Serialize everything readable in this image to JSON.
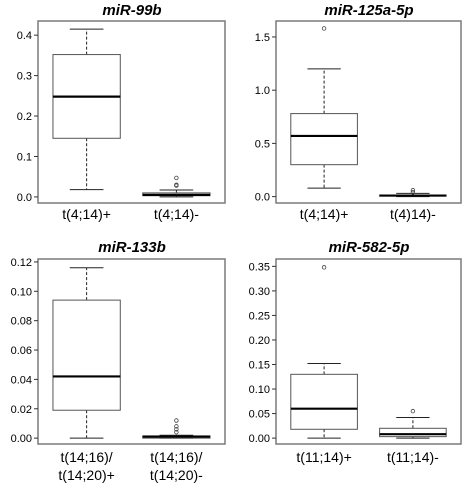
{
  "chart_data": [
    {
      "type": "box",
      "title": "miR-99b",
      "ylim": [
        -0.015,
        0.435
      ],
      "yticks": [
        0.0,
        0.1,
        0.2,
        0.3,
        0.4
      ],
      "tick_labels": [
        "0.0",
        "0.1",
        "0.2",
        "0.3",
        "0.4"
      ],
      "categories": [
        [
          "t(4;14)+"
        ],
        [
          "t(4;14)-"
        ]
      ],
      "boxes": [
        {
          "min": 0.018,
          "q1": 0.145,
          "median": 0.248,
          "q3": 0.352,
          "max": 0.415,
          "outliers": []
        },
        {
          "min": 0.0,
          "q1": 0.003,
          "median": 0.005,
          "q3": 0.01,
          "max": 0.017,
          "outliers": [
            0.028,
            0.03,
            0.047
          ]
        }
      ]
    },
    {
      "type": "box",
      "title": "miR-125a-5p",
      "ylim": [
        -0.06,
        1.65
      ],
      "yticks": [
        0.0,
        0.5,
        1.0,
        1.5
      ],
      "tick_labels": [
        "0.0",
        "0.5",
        "1.0",
        "1.5"
      ],
      "categories": [
        [
          "t(4;14)+"
        ],
        [
          "t(4)14)-"
        ]
      ],
      "boxes": [
        {
          "min": 0.08,
          "q1": 0.3,
          "median": 0.57,
          "q3": 0.78,
          "max": 1.2,
          "outliers": [
            1.58
          ]
        },
        {
          "min": 0.0,
          "q1": 0.005,
          "median": 0.01,
          "q3": 0.015,
          "max": 0.03,
          "outliers": [
            0.04,
            0.06
          ]
        }
      ]
    },
    {
      "type": "box",
      "title": "miR-133b",
      "ylim": [
        -0.004,
        0.122
      ],
      "yticks": [
        0.0,
        0.02,
        0.04,
        0.06,
        0.08,
        0.1,
        0.12
      ],
      "tick_labels": [
        "0.00",
        "0.02",
        "0.04",
        "0.06",
        "0.08",
        "0.10",
        "0.12"
      ],
      "categories": [
        [
          "t(14;16)/",
          "t(14;20)+"
        ],
        [
          "t(14;16)/",
          "t(14;20)-"
        ]
      ],
      "boxes": [
        {
          "min": 0.0,
          "q1": 0.019,
          "median": 0.042,
          "q3": 0.094,
          "max": 0.116,
          "outliers": []
        },
        {
          "min": 0.0,
          "q1": 0.0,
          "median": 0.001,
          "q3": 0.0015,
          "max": 0.002,
          "outliers": [
            0.004,
            0.006,
            0.008,
            0.012
          ]
        }
      ]
    },
    {
      "type": "box",
      "title": "miR-582-5p",
      "ylim": [
        -0.012,
        0.365
      ],
      "yticks": [
        0.0,
        0.05,
        0.1,
        0.15,
        0.2,
        0.25,
        0.3,
        0.35
      ],
      "tick_labels": [
        "0.00",
        "0.05",
        "0.10",
        "0.15",
        "0.20",
        "0.25",
        "0.30",
        "0.35"
      ],
      "categories": [
        [
          "t(11;14)+"
        ],
        [
          "t(11;14)-"
        ]
      ],
      "boxes": [
        {
          "min": 0.0,
          "q1": 0.018,
          "median": 0.06,
          "q3": 0.13,
          "max": 0.152,
          "outliers": [
            0.348
          ]
        },
        {
          "min": 0.0,
          "q1": 0.003,
          "median": 0.008,
          "q3": 0.02,
          "max": 0.042,
          "outliers": [
            0.055
          ]
        }
      ]
    }
  ]
}
